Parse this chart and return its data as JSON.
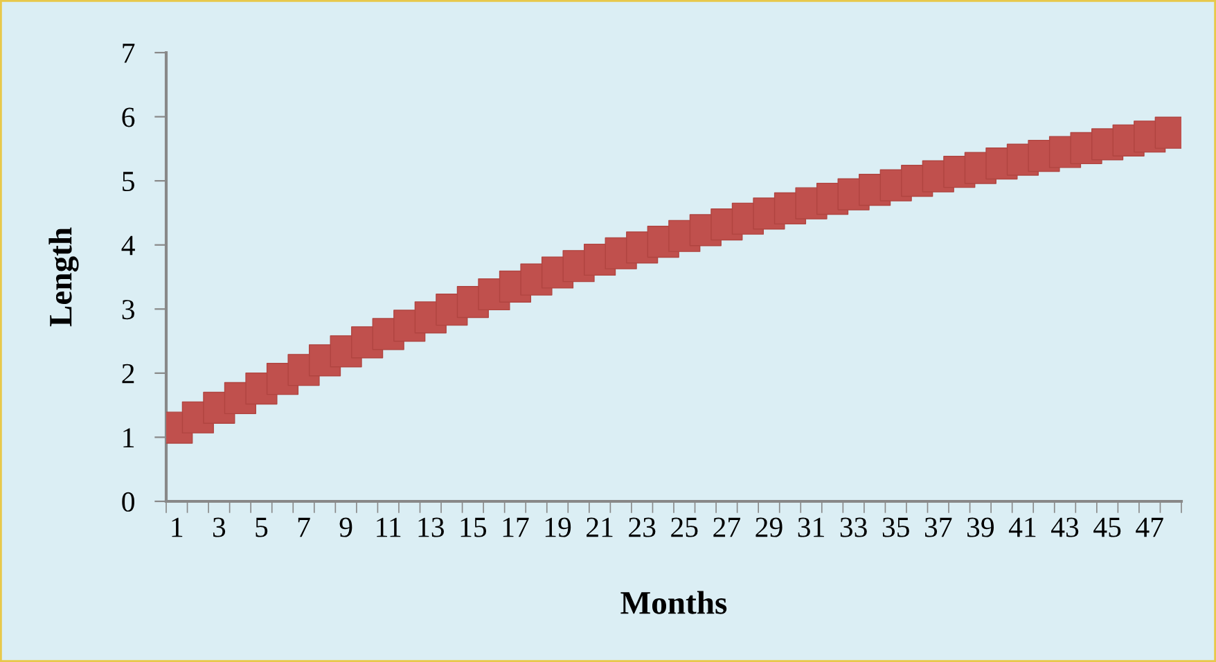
{
  "chart_data": {
    "type": "scatter",
    "xlabel": "Months",
    "ylabel": "Length",
    "categories": [
      "1",
      null,
      "3",
      null,
      "5",
      null,
      "7",
      null,
      "9",
      null,
      "11",
      null,
      "13",
      null,
      "15",
      null,
      "17",
      null,
      "19",
      null,
      "21",
      null,
      "23",
      null,
      "25",
      null,
      "27",
      null,
      "29",
      null,
      "31",
      null,
      "33",
      null,
      "35",
      null,
      "37",
      null,
      "39",
      null,
      "41",
      null,
      "43",
      null,
      "45",
      null,
      "47",
      null
    ],
    "series": [
      {
        "color": "#c0504d",
        "values": [
          1.15,
          1.31,
          1.46,
          1.61,
          1.76,
          1.91,
          2.05,
          2.2,
          2.34,
          2.48,
          2.61,
          2.74,
          2.87,
          2.99,
          3.11,
          3.23,
          3.35,
          3.46,
          3.57,
          3.67,
          3.77,
          3.87,
          3.96,
          4.05,
          4.14,
          4.23,
          4.32,
          4.41,
          4.49,
          4.57,
          4.65,
          4.72,
          4.79,
          4.86,
          4.93,
          5.0,
          5.07,
          5.14,
          5.2,
          5.27,
          5.33,
          5.39,
          5.45,
          5.51,
          5.57,
          5.63,
          5.69,
          5.75
        ]
      }
    ],
    "ylim": [
      0,
      7
    ],
    "yticks": [
      0,
      1,
      2,
      3,
      4,
      5,
      6,
      7
    ],
    "marker": "square",
    "grid": false,
    "legend": false
  }
}
